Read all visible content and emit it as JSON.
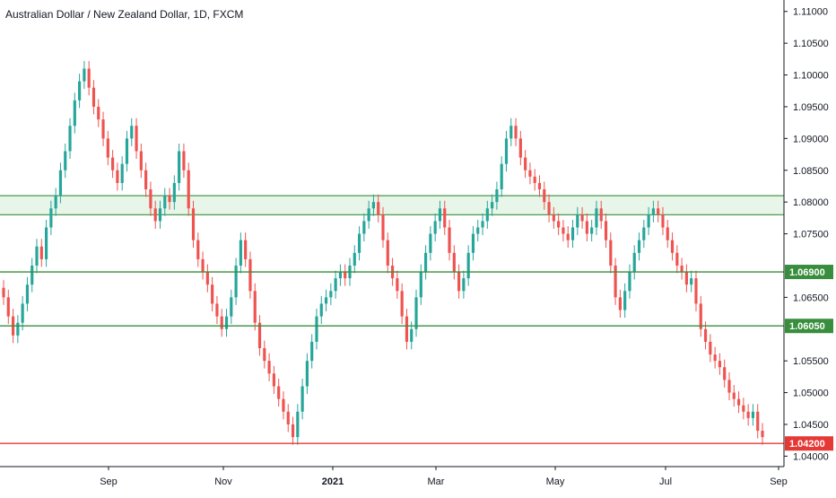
{
  "chart_data": {
    "type": "candlestick",
    "title": "Australian Dollar / New Zealand Dollar, 1D, FXCM",
    "x_tick_labels": [
      "Sep",
      "Nov",
      "2021",
      "Mar",
      "May",
      "Jul",
      "Sep"
    ],
    "y_ticks": [
      "1.11000",
      "1.10500",
      "1.10000",
      "1.09500",
      "1.09000",
      "1.08500",
      "1.08000",
      "1.07500",
      "1.06500",
      "1.05500",
      "1.05000",
      "1.04500",
      "1.04000"
    ],
    "ylim": [
      1.0385,
      1.1118
    ],
    "colors": {
      "up": "#26a69a",
      "down": "#ef5350",
      "support": "#388e3c",
      "resistance_red": "#e53935",
      "zone_fill": "#e8f5e9"
    },
    "horizontal_levels": [
      {
        "label": "1.06900",
        "value": 1.069,
        "color": "#388e3c"
      },
      {
        "label": "1.06050",
        "value": 1.0605,
        "color": "#388e3c"
      },
      {
        "label": "1.04200",
        "value": 1.042,
        "color": "#e53935"
      }
    ],
    "zone": {
      "low": 1.078,
      "high": 1.081
    },
    "series_close": [
      1.065,
      1.062,
      1.059,
      1.061,
      1.064,
      1.067,
      1.07,
      1.073,
      1.071,
      1.076,
      1.079,
      1.081,
      1.085,
      1.088,
      1.092,
      1.096,
      1.099,
      1.101,
      1.098,
      1.095,
      1.093,
      1.09,
      1.087,
      1.085,
      1.083,
      1.086,
      1.09,
      1.092,
      1.088,
      1.085,
      1.082,
      1.079,
      1.077,
      1.079,
      1.081,
      1.08,
      1.083,
      1.088,
      1.085,
      1.079,
      1.074,
      1.071,
      1.069,
      1.067,
      1.064,
      1.062,
      1.06,
      1.062,
      1.065,
      1.07,
      1.074,
      1.071,
      1.066,
      1.061,
      1.057,
      1.055,
      1.053,
      1.051,
      1.049,
      1.047,
      1.045,
      1.043,
      1.047,
      1.051,
      1.055,
      1.058,
      1.062,
      1.064,
      1.065,
      1.066,
      1.068,
      1.069,
      1.068,
      1.07,
      1.072,
      1.075,
      1.077,
      1.079,
      1.08,
      1.078,
      1.074,
      1.07,
      1.068,
      1.066,
      1.062,
      1.058,
      1.06,
      1.065,
      1.069,
      1.072,
      1.075,
      1.077,
      1.079,
      1.076,
      1.072,
      1.069,
      1.066,
      1.068,
      1.072,
      1.075,
      1.076,
      1.077,
      1.079,
      1.08,
      1.082,
      1.086,
      1.09,
      1.092,
      1.09,
      1.087,
      1.085,
      1.084,
      1.083,
      1.082,
      1.08,
      1.078,
      1.077,
      1.076,
      1.075,
      1.074,
      1.076,
      1.078,
      1.077,
      1.075,
      1.076,
      1.079,
      1.077,
      1.074,
      1.07,
      1.065,
      1.063,
      1.066,
      1.069,
      1.072,
      1.074,
      1.076,
      1.078,
      1.079,
      1.078,
      1.076,
      1.074,
      1.072,
      1.07,
      1.069,
      1.067,
      1.068,
      1.064,
      1.06,
      1.058,
      1.056,
      1.055,
      1.054,
      1.052,
      1.05,
      1.049,
      1.048,
      1.047,
      1.046,
      1.047,
      1.044,
      1.043
    ]
  }
}
